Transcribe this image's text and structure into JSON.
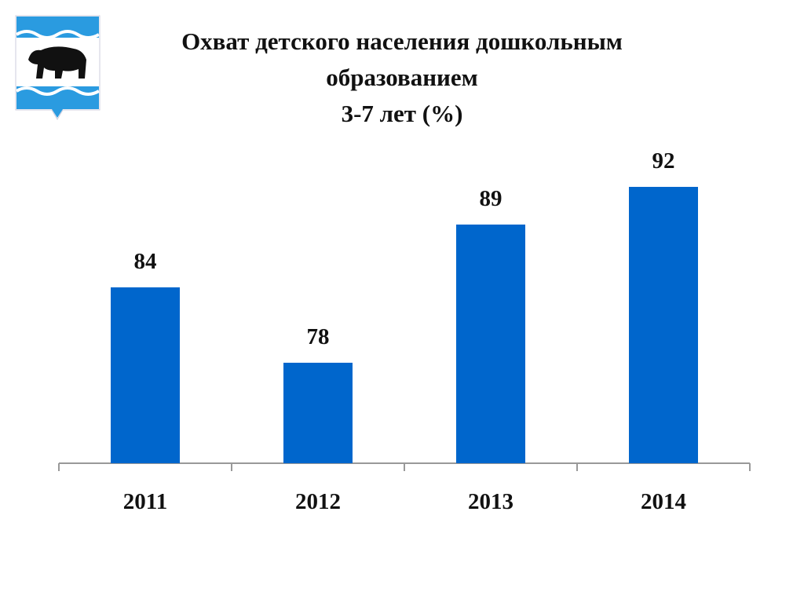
{
  "chart_data": {
    "type": "bar",
    "title": "Охват детского населения дошкольным образованием",
    "subtitle": "3-7 лет (%)",
    "categories": [
      "2011",
      "2012",
      "2013",
      "2014"
    ],
    "values": [
      84,
      78,
      89,
      92
    ],
    "color": "#0066cc",
    "ylim": [
      70,
      95
    ]
  }
}
